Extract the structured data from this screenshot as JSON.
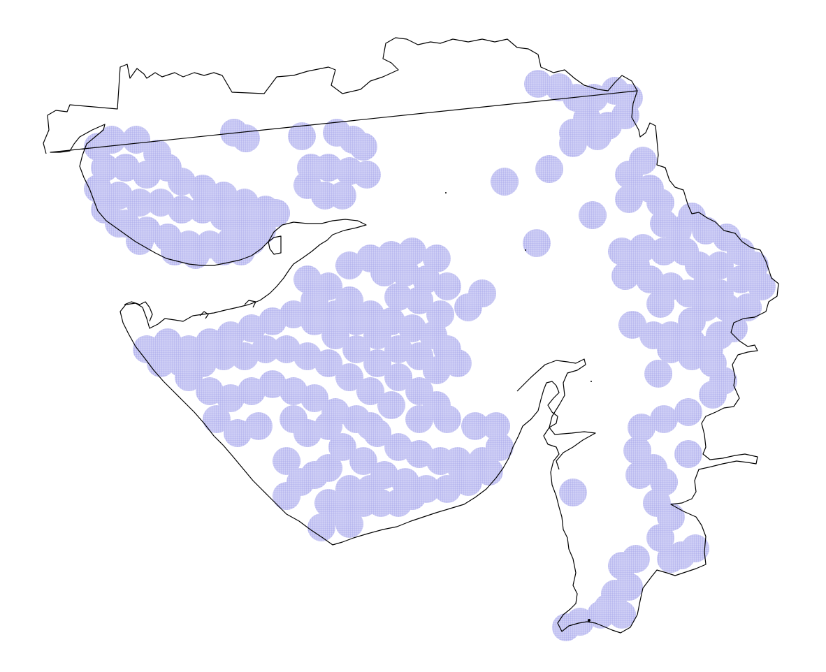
{
  "map": {
    "subject": "",
    "coverage_fill": "#c6c6f2",
    "coverage_hatch": "#8f8fe6",
    "outline_color": "#000000",
    "background": "#ffffff"
  }
}
